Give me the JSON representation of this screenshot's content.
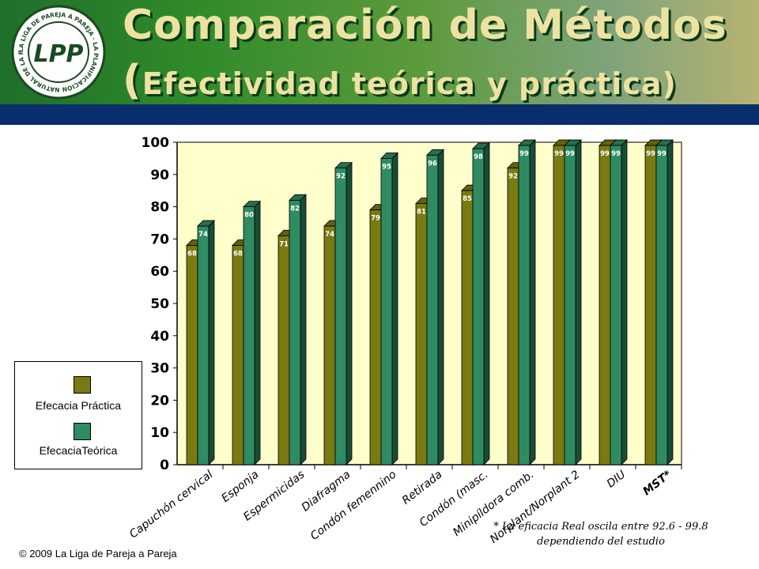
{
  "header": {
    "title_line1": "Comparación de Métodos",
    "title_line2_open": "(",
    "title_line2_text": "Efectividad teórica y práctica)",
    "logo_text": "LPP",
    "logo_ring_text": "LA LIGA DE PAREJA A PAREJA · LA PLANIFICACIÓN NATURAL DE LA FAMILIA ®"
  },
  "footnote": {
    "line1": "* La eficacia Real oscila entre 92.6 - 99.8",
    "line2": "dependiendo del estudio"
  },
  "copyright": "© 2009 La Liga de Pareja a Pareja",
  "colors": {
    "practica": "#7a7a12",
    "teorica": "#2e8b62",
    "plot_bg": "#ffffcc"
  },
  "chart_data": {
    "type": "bar",
    "categories": [
      "Capuchón cervical",
      "Esponja",
      "Espermicidas",
      "Diafragma",
      "Condón femennino",
      "Retirada",
      "Condón (masc.",
      "Minipíldora comb.",
      "Norplant/Norplant 2",
      "DIU",
      "MST*"
    ],
    "series": [
      {
        "name": "Efecacia Práctica",
        "values": [
          68,
          68,
          71,
          74,
          79,
          81,
          85,
          92,
          99,
          99,
          99
        ]
      },
      {
        "name": "EfecaciaTeórica",
        "values": [
          74,
          80,
          82,
          92,
          95,
          96,
          98,
          99,
          99,
          99,
          99
        ]
      }
    ],
    "ylim": [
      0,
      100
    ],
    "yticks": [
      "0",
      "10",
      "20",
      "30",
      "40",
      "50",
      "60",
      "70",
      "80",
      "90",
      "100"
    ],
    "grid": false,
    "legend": "left"
  }
}
